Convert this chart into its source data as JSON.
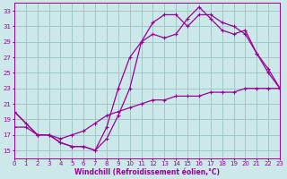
{
  "xlabel": "Windchill (Refroidissement éolien,°C)",
  "bg_color": "#cce8e8",
  "grid_color": "#a0c8c8",
  "line_color": "#990099",
  "xlim": [
    0,
    23
  ],
  "ylim": [
    14,
    34
  ],
  "xticks": [
    0,
    1,
    2,
    3,
    4,
    5,
    6,
    7,
    8,
    9,
    10,
    11,
    12,
    13,
    14,
    15,
    16,
    17,
    18,
    19,
    20,
    21,
    22,
    23
  ],
  "yticks": [
    15,
    17,
    19,
    21,
    23,
    25,
    27,
    29,
    31,
    33
  ],
  "line1_x": [
    0,
    1,
    2,
    3,
    4,
    5,
    6,
    7,
    8,
    9,
    10,
    11,
    12,
    13,
    14,
    15,
    16,
    17,
    18,
    19,
    20,
    21,
    22,
    23
  ],
  "line1_y": [
    20,
    18.5,
    17,
    17,
    16,
    15.5,
    15.5,
    15,
    16.5,
    19.5,
    23,
    29,
    31.5,
    32.5,
    32.5,
    31,
    32.5,
    32.5,
    31.5,
    31,
    30,
    27.5,
    25,
    23
  ],
  "line2_x": [
    0,
    2,
    3,
    4,
    5,
    6,
    7,
    8,
    9,
    10,
    11,
    12,
    13,
    14,
    15,
    16,
    17,
    18,
    19,
    20,
    21,
    22,
    23
  ],
  "line2_y": [
    20,
    17,
    17,
    16,
    15.5,
    15.5,
    15,
    18,
    23,
    27,
    29,
    30,
    29.5,
    30,
    32,
    33.5,
    32,
    30.5,
    30,
    30.5,
    27.5,
    25.5,
    23
  ],
  "line3_x": [
    0,
    1,
    2,
    3,
    4,
    5,
    6,
    7,
    8,
    9,
    10,
    11,
    12,
    13,
    14,
    15,
    16,
    17,
    18,
    19,
    20,
    21,
    22,
    23
  ],
  "line3_y": [
    18,
    18,
    17,
    17,
    16.5,
    17,
    17.5,
    18.5,
    19.5,
    20,
    20.5,
    21,
    21.5,
    21.5,
    22,
    22,
    22,
    22.5,
    22.5,
    22.5,
    23,
    23,
    23,
    23
  ]
}
